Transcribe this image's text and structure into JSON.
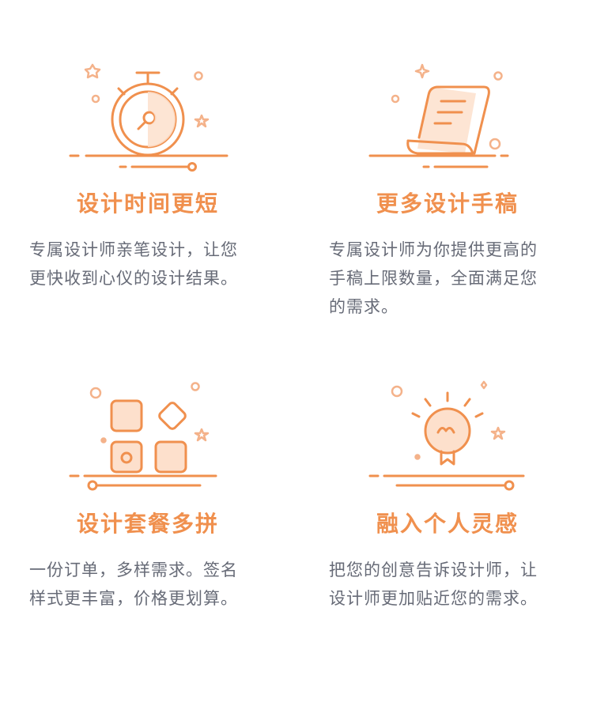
{
  "colors": {
    "accent": "#f0904e",
    "accent_light": "#fde0cc",
    "text": "#676b77",
    "sparkle": "#f4b28a"
  },
  "features": [
    {
      "icon": "stopwatch-icon",
      "title": "设计时间更短",
      "description": "专属设计师亲笔设计，让您更快收到心仪的设计结果。"
    },
    {
      "icon": "manuscript-scroll-icon",
      "title": "更多设计手稿",
      "description": "专属设计师为你提供更高的手稿上限数量，全面满足您的需求。"
    },
    {
      "icon": "blocks-icon",
      "title": "设计套餐多拼",
      "description": "一份订单，多样需求。签名样式更丰富，价格更划算。"
    },
    {
      "icon": "lightbulb-icon",
      "title": "融入个人灵感",
      "description": "把您的创意告诉设计师，让设计师更加贴近您的需求。"
    }
  ]
}
